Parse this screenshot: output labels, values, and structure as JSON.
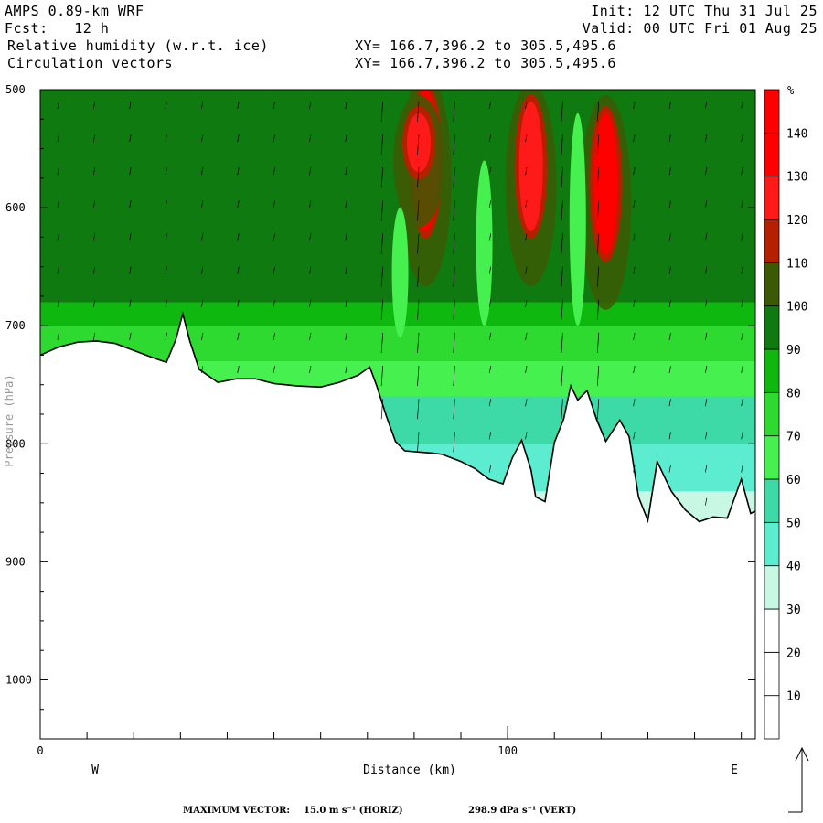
{
  "header": {
    "model": "AMPS 0.89-km WRF",
    "forecast": "Fcst:   12 h",
    "field1": "Relative humidity (w.r.t. ice)",
    "field2": "Circulation vectors",
    "init": "Init: 12 UTC Thu 31 Jul 25",
    "valid": "Valid: 00 UTC Fri 01 Aug 25",
    "xy1": "XY= 166.7,396.2 to 305.5,495.6",
    "xy2": "XY= 166.7,396.2 to 305.5,495.6"
  },
  "footer": {
    "max_vector_label": "MAXIMUM VECTOR:",
    "horiz": "15.0 m s⁻¹ (HORIZ)",
    "vert": "298.9 dPa s⁻¹ (VERT)"
  },
  "chart_data": {
    "type": "heatmap",
    "title": "Relative humidity (w.r.t. ice)",
    "overlay": "Circulation vectors",
    "xlabel": "Distance (km)",
    "ylabel": "Pressure (hPa)",
    "x_ticks": [
      {
        "value": 0,
        "label": "0"
      },
      {
        "value": 100,
        "label": "100"
      }
    ],
    "x_end_labels": {
      "left": "W",
      "right": "E"
    },
    "xlim": [
      0,
      153
    ],
    "y_ticks": [
      500,
      600,
      700,
      800,
      900,
      1000
    ],
    "ylim": [
      500,
      1050
    ],
    "y_inverted": true,
    "colorbar": {
      "unit": "%",
      "levels": [
        10,
        20,
        30,
        40,
        50,
        60,
        70,
        80,
        90,
        100,
        110,
        120,
        130,
        140
      ],
      "colors": [
        "#ffffff",
        "#ffffff",
        "#ffffff",
        "#c8f8e4",
        "#5cedd0",
        "#3dd9a6",
        "#46f04e",
        "#2ed930",
        "#0fb80f",
        "#0f7a10",
        "#3c5a05",
        "#b52000",
        "#ff1a1a",
        "#ff0000",
        "#ff0000"
      ]
    },
    "terrain_profile": {
      "x_km": [
        0,
        4,
        8,
        12,
        16,
        20,
        24,
        27,
        29,
        30.5,
        32,
        34,
        38,
        42,
        46,
        50,
        55,
        60,
        64,
        68,
        70.5,
        72,
        74,
        76,
        78,
        81,
        84,
        86,
        88,
        90,
        93,
        96,
        99,
        101,
        103,
        105,
        106,
        108,
        110,
        112,
        113.5,
        115,
        117,
        119,
        121,
        124,
        126,
        128,
        130,
        132,
        135,
        138,
        141,
        144,
        147,
        150,
        152,
        153
      ],
      "surface_hpa": [
        725,
        718,
        714,
        713,
        715,
        721,
        727,
        731,
        712,
        690,
        713,
        737,
        748,
        745,
        745,
        749,
        751,
        752,
        748,
        742,
        735,
        751,
        776,
        798,
        806,
        807,
        808,
        809,
        812,
        815,
        821,
        830,
        834,
        812,
        797,
        822,
        845,
        849,
        799,
        779,
        751,
        763,
        755,
        779,
        798,
        780,
        794,
        845,
        865,
        815,
        840,
        856,
        866,
        862,
        863,
        830,
        859,
        857
      ]
    },
    "rh_vertical_structure": [
      {
        "p_hpa": 500,
        "rh_pct": 95
      },
      {
        "p_hpa": 660,
        "rh_pct": 95
      },
      {
        "p_hpa": 680,
        "rh_pct": 85
      },
      {
        "p_hpa": 700,
        "rh_pct": 75
      },
      {
        "p_hpa": 730,
        "rh_pct": 65
      },
      {
        "p_hpa": 760,
        "rh_pct": 55
      },
      {
        "p_hpa": 800,
        "rh_pct": 45
      },
      {
        "p_hpa": 840,
        "rh_pct": 35
      }
    ],
    "rh_maxima": [
      {
        "x_km": 82.5,
        "p_top_hpa": 500,
        "p_bottom_hpa": 620,
        "rh_pct": 140
      },
      {
        "x_km": 105,
        "p_top_hpa": 510,
        "p_bottom_hpa": 620,
        "rh_pct": 125
      },
      {
        "x_km": 121,
        "p_top_hpa": 520,
        "p_bottom_hpa": 640,
        "rh_pct": 140
      },
      {
        "x_km": 81,
        "p_top_hpa": 520,
        "p_bottom_hpa": 570,
        "rh_pct": 125
      }
    ]
  }
}
